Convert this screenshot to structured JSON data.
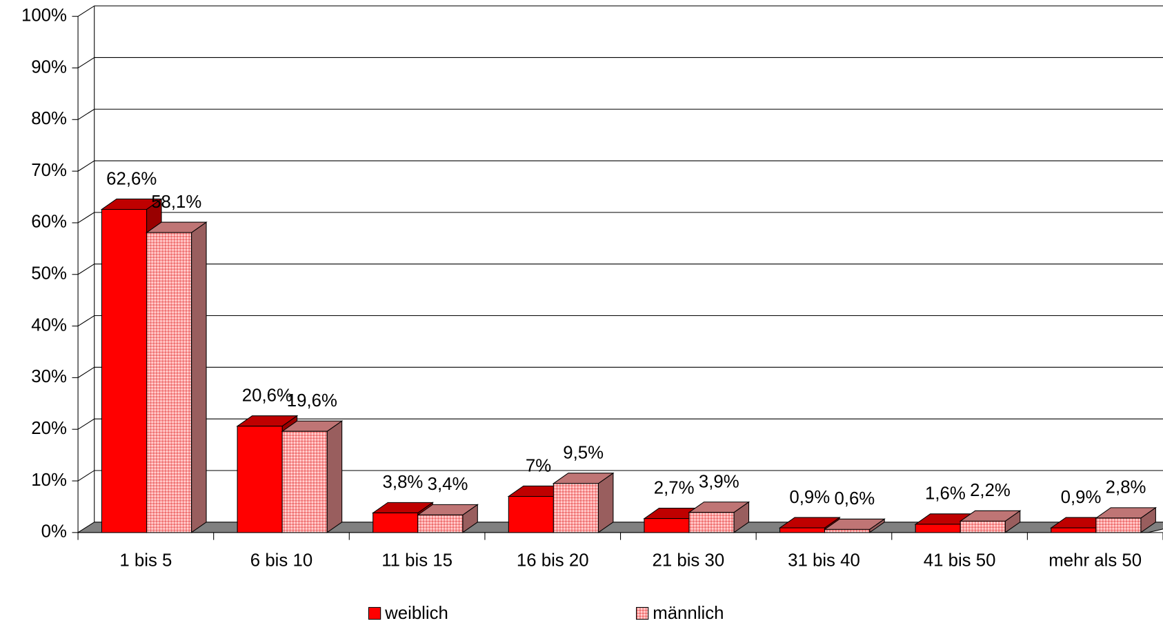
{
  "chart_data": {
    "type": "bar3d",
    "categories": [
      "1 bis 5",
      "6 bis 10",
      "11 bis 15",
      "16 bis 20",
      "21 bis 30",
      "31 bis 40",
      "41 bis 50",
      "mehr als 50"
    ],
    "series": [
      {
        "name": "weiblich",
        "color": "#ff0000",
        "values": [
          62.6,
          20.6,
          3.8,
          7,
          2.7,
          0.9,
          1.6,
          0.9
        ],
        "value_labels": [
          "62,6%",
          "20,6%",
          "3,8%",
          "7%",
          "2,7%",
          "0,9%",
          "1,6%",
          "0,9%"
        ]
      },
      {
        "name": "männlich",
        "color": "#ff9c9c",
        "values": [
          58.1,
          19.6,
          3.4,
          9.5,
          3.9,
          0.6,
          2.2,
          2.8
        ],
        "value_labels": [
          "58,1%",
          "19,6%",
          "3,4%",
          "9,5%",
          "3,9%",
          "0,6%",
          "2,2%",
          "2,8%"
        ]
      }
    ],
    "ylim": [
      0,
      100
    ],
    "yticks": [
      {
        "value": 0,
        "label": "0%"
      },
      {
        "value": 10,
        "label": "10%"
      },
      {
        "value": 20,
        "label": "20%"
      },
      {
        "value": 30,
        "label": "30%"
      },
      {
        "value": 40,
        "label": "40%"
      },
      {
        "value": 50,
        "label": "50%"
      },
      {
        "value": 60,
        "label": "60%"
      },
      {
        "value": 70,
        "label": "70%"
      },
      {
        "value": 80,
        "label": "80%"
      },
      {
        "value": 90,
        "label": "90%"
      },
      {
        "value": 100,
        "label": "100%"
      }
    ],
    "grid": true
  }
}
